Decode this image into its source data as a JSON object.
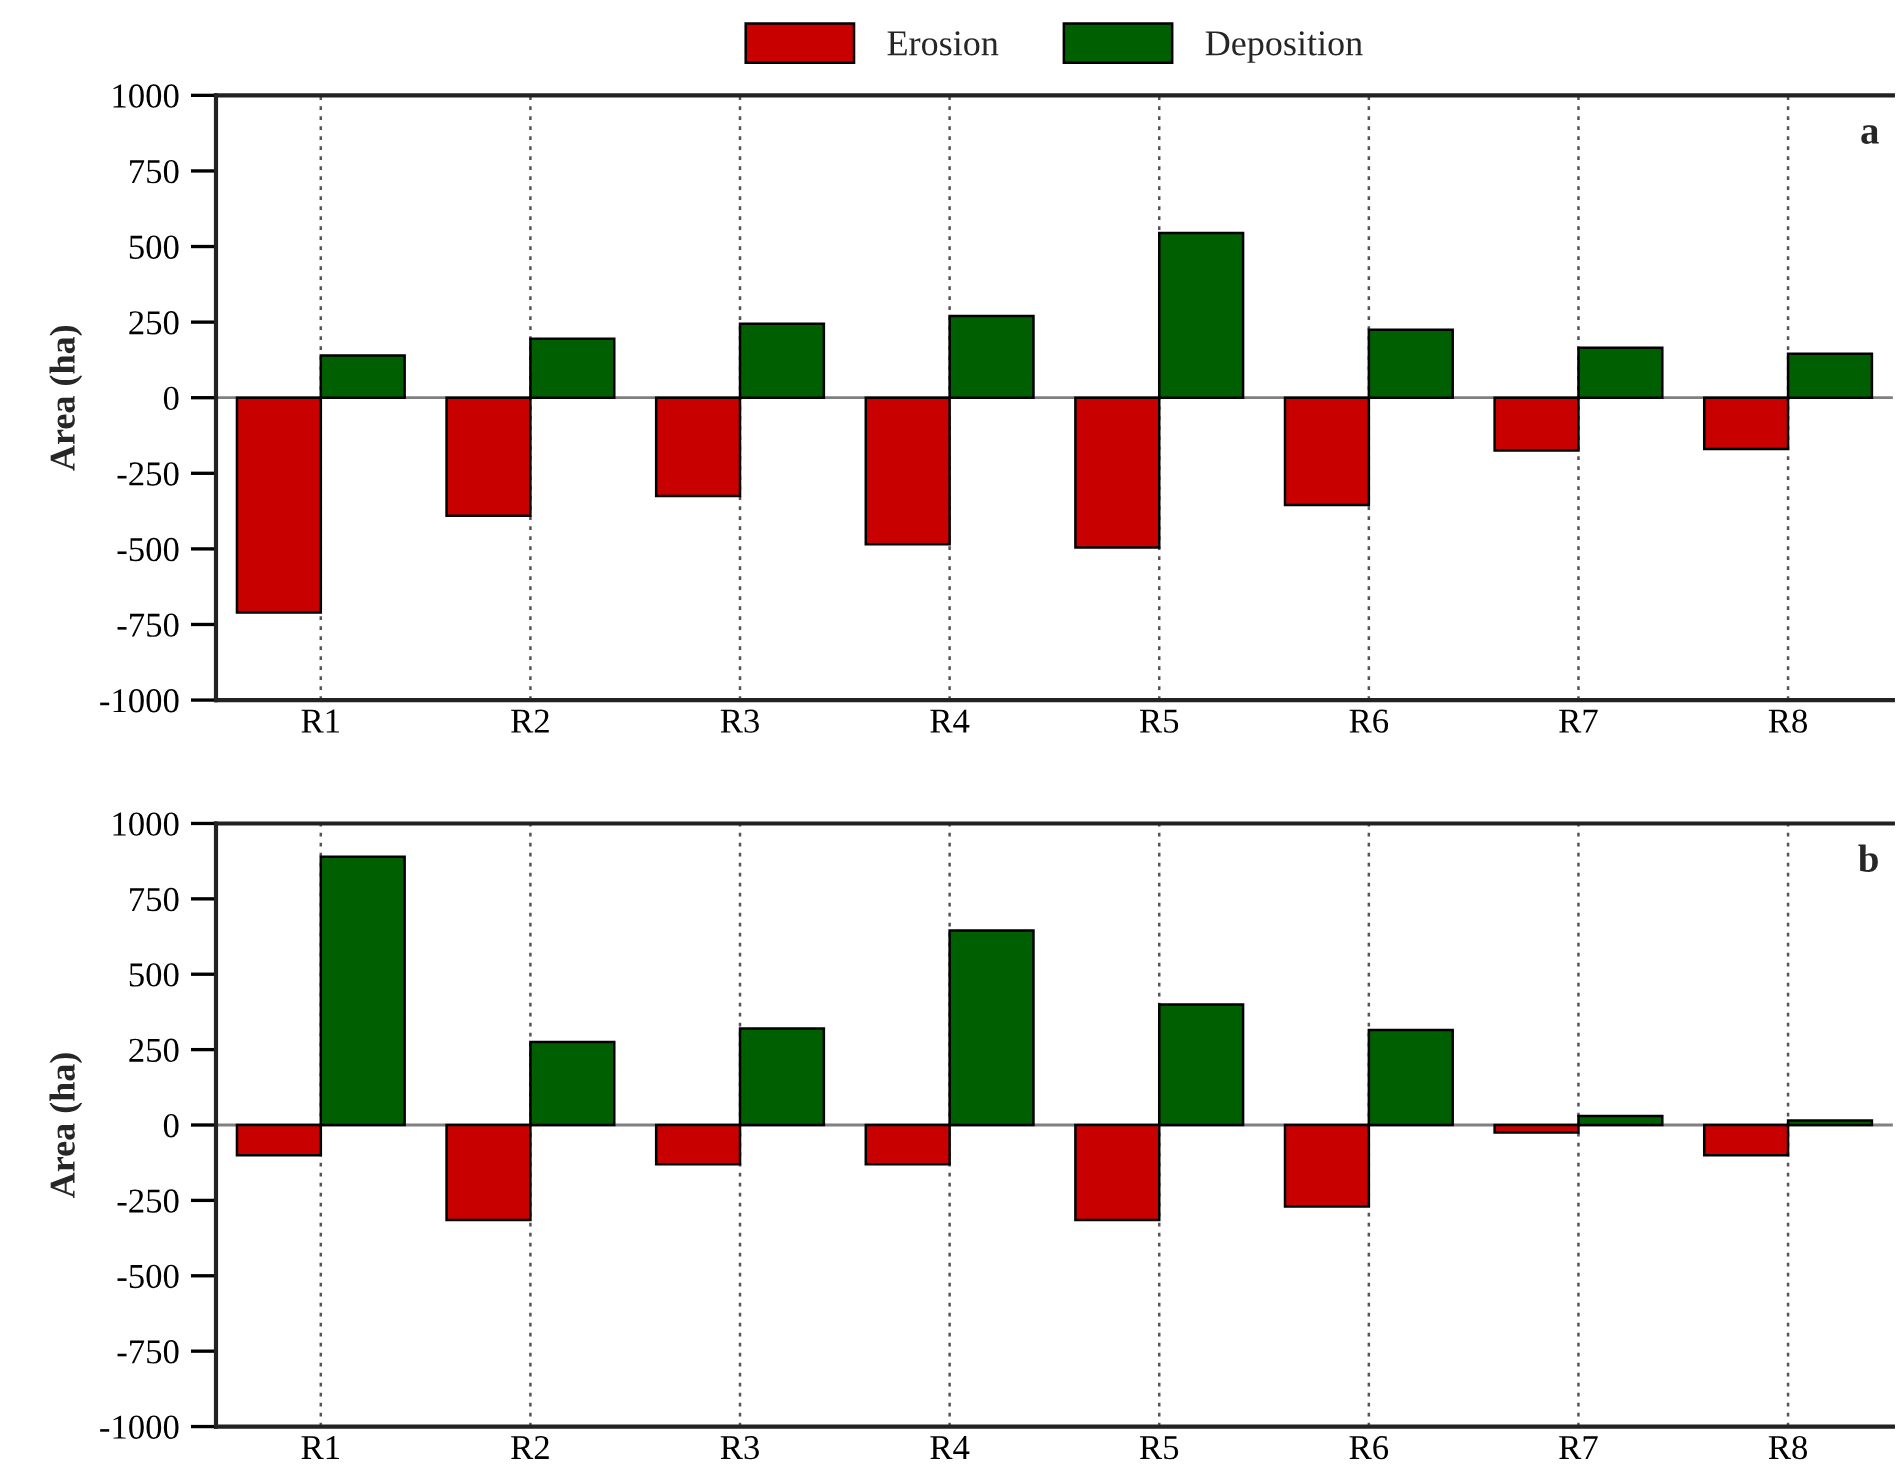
{
  "chart_data": [
    {
      "type": "bar",
      "categories": [
        "R1",
        "R2",
        "R3",
        "R4",
        "R5",
        "R6",
        "R7",
        "R8"
      ],
      "series": [
        {
          "name": "Erosion",
          "color": "#c80000",
          "values": [
            -710,
            -390,
            -325,
            -485,
            -495,
            -355,
            -175,
            -170
          ]
        },
        {
          "name": "Deposition",
          "color": "#005f00",
          "values": [
            140,
            195,
            245,
            270,
            545,
            225,
            165,
            145
          ]
        }
      ],
      "ylabel": "Area (ha)",
      "ylim": [
        -1000,
        1000
      ],
      "yticks": [
        -1000,
        -750,
        -500,
        -250,
        0,
        250,
        500,
        750,
        1000
      ],
      "grid": "x",
      "legend": "top",
      "annotations": [
        "a"
      ],
      "ref_lines": [
        {
          "axis": "y",
          "value": 0,
          "color": "#808080"
        }
      ]
    },
    {
      "type": "bar",
      "categories": [
        "R1",
        "R2",
        "R3",
        "R4",
        "R5",
        "R6",
        "R7",
        "R8"
      ],
      "series": [
        {
          "color": "#c80000",
          "values": [
            -100,
            -315,
            -130,
            -130,
            -315,
            -270,
            -25,
            -100
          ]
        },
        {
          "color": "#005f00",
          "values": [
            890,
            275,
            320,
            645,
            400,
            315,
            30,
            15
          ]
        }
      ],
      "ylabel": "Area (ha)",
      "ylim": [
        -1000,
        1000
      ],
      "yticks": [
        -1000,
        -750,
        -500,
        -250,
        0,
        250,
        500,
        750,
        1000
      ],
      "grid": "x",
      "annotations": [
        "b"
      ],
      "ref_lines": [
        {
          "axis": "y",
          "value": 0,
          "color": "#808080"
        }
      ]
    }
  ]
}
